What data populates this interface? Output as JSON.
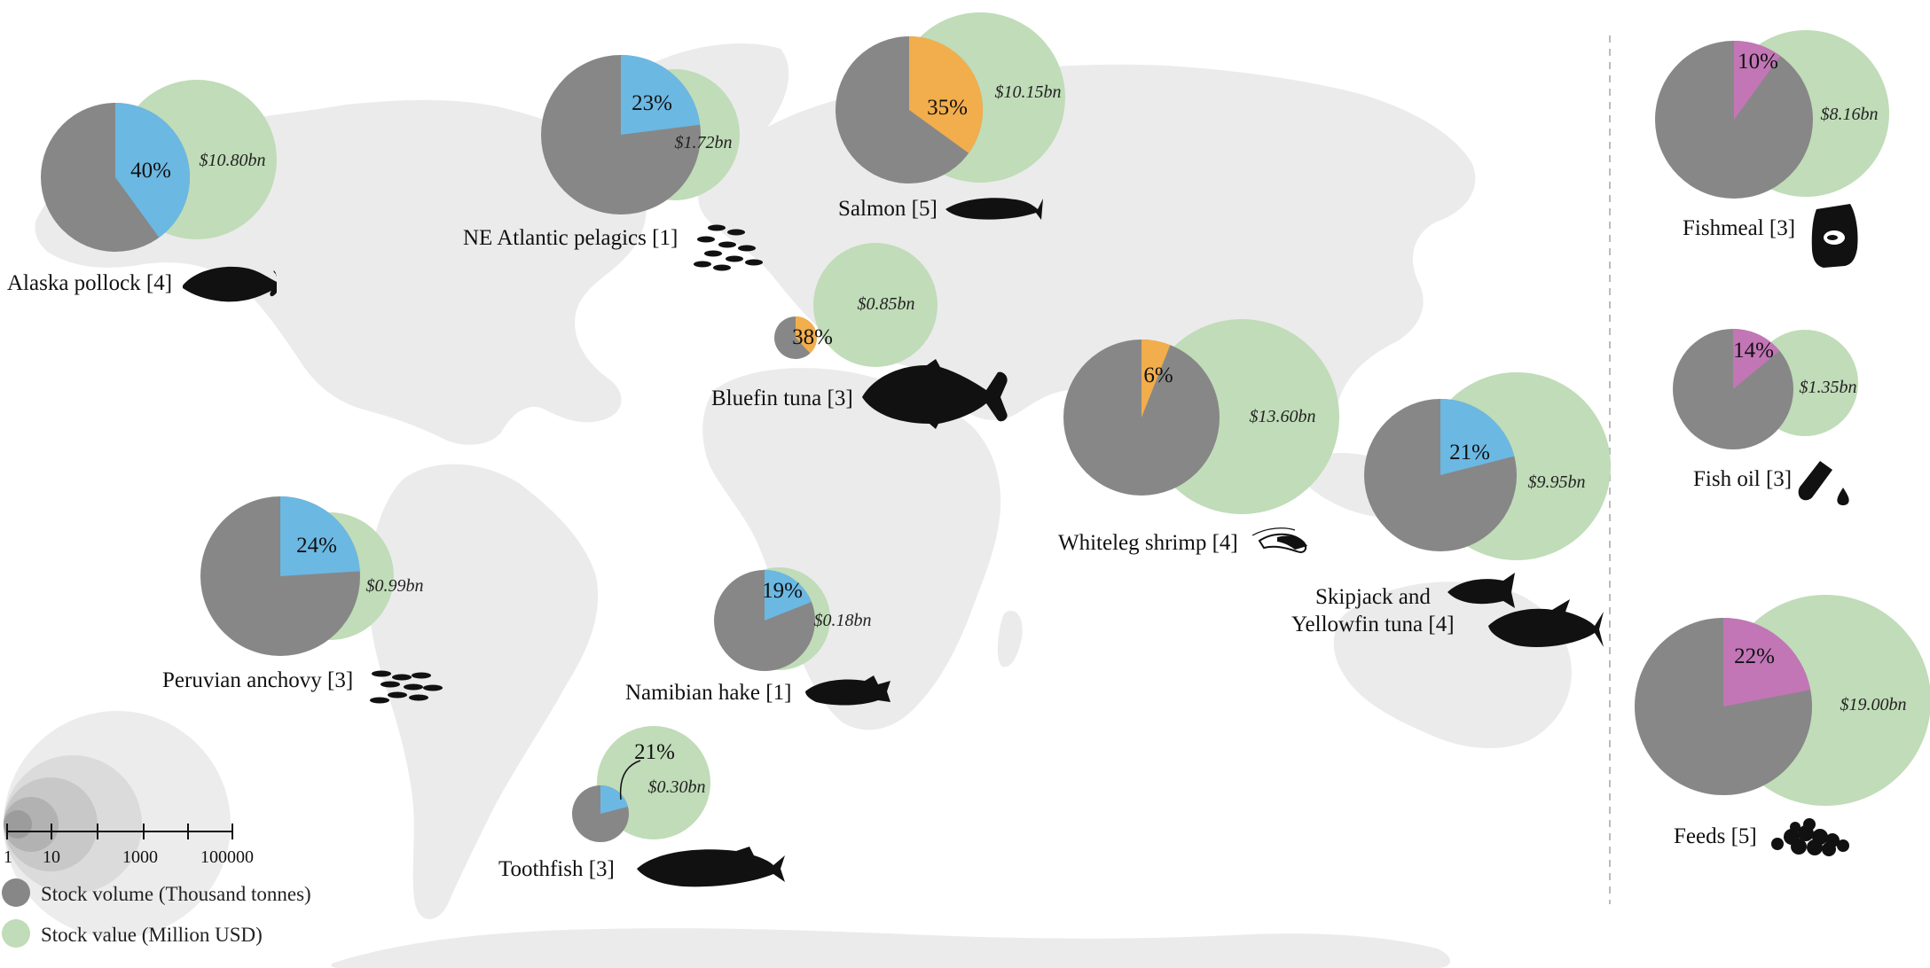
{
  "colors": {
    "volume": "#878787",
    "value": "#c0dcb8",
    "wild": "#6bb8e3",
    "farmed": "#f2ae4c",
    "feed": "#c276b6",
    "land": "#ebebeb",
    "silhouette": "#111111"
  },
  "stocks": [
    {
      "id": "alaska-pollock",
      "label": "Alaska pollock [4]",
      "pct": "40%",
      "pct_value": 40,
      "value_label": "$10.80bn",
      "category": "wild",
      "icon": "cod-silhouette-icon"
    },
    {
      "id": "ne-atlantic-pelagics",
      "label": "NE Atlantic pelagics [1]",
      "pct": "23%",
      "pct_value": 23,
      "value_label": "$1.72bn",
      "category": "wild",
      "icon": "fish-school-icon"
    },
    {
      "id": "salmon",
      "label": "Salmon [5]",
      "pct": "35%",
      "pct_value": 35,
      "value_label": "$10.15bn",
      "category": "farmed",
      "icon": "salmon-silhouette-icon"
    },
    {
      "id": "bluefin-tuna",
      "label": "Bluefin tuna [3]",
      "pct": "38%",
      "pct_value": 38,
      "value_label": "$0.85bn",
      "category": "farmed",
      "icon": "tuna-silhouette-icon"
    },
    {
      "id": "whiteleg-shrimp",
      "label": "Whiteleg shrimp [4]",
      "pct": "6%",
      "pct_value": 6,
      "value_label": "$13.60bn",
      "category": "farmed",
      "icon": "shrimp-icon"
    },
    {
      "id": "skipjack-yellowfin",
      "label": "Skipjack and",
      "label2": "Yellowfin tuna [4]",
      "pct": "21%",
      "pct_value": 21,
      "value_label": "$9.95bn",
      "category": "wild",
      "icon": "skipjack-tuna-icon"
    },
    {
      "id": "peruvian-anchovy",
      "label": "Peruvian anchovy [3]",
      "pct": "24%",
      "pct_value": 24,
      "value_label": "$0.99bn",
      "category": "wild",
      "icon": "anchovy-school-icon"
    },
    {
      "id": "namibian-hake",
      "label": "Namibian hake [1]",
      "pct": "19%",
      "pct_value": 19,
      "value_label": "$0.18bn",
      "category": "wild",
      "icon": "hake-silhouette-icon"
    },
    {
      "id": "toothfish",
      "label": "Toothfish [3]",
      "pct": "21%",
      "pct_value": 21,
      "value_label": "$0.30bn",
      "category": "wild",
      "icon": "toothfish-silhouette-icon"
    },
    {
      "id": "fishmeal",
      "label": "Fishmeal [3]",
      "pct": "10%",
      "pct_value": 10,
      "value_label": "$8.16bn",
      "category": "feed",
      "icon": "fishmeal-bag-icon"
    },
    {
      "id": "fish-oil",
      "label": "Fish oil [3]",
      "pct": "14%",
      "pct_value": 14,
      "value_label": "$1.35bn",
      "category": "feed",
      "icon": "fish-oil-tube-icon"
    },
    {
      "id": "feeds",
      "label": "Feeds [5]",
      "pct": "22%",
      "pct_value": 22,
      "value_label": "$19.00bn",
      "category": "feed",
      "icon": "feed-pellets-icon"
    }
  ],
  "legend": {
    "ticks": [
      "1",
      "10",
      "1000",
      "100000"
    ],
    "volume_label": "Stock volume (Thousand tonnes)",
    "value_label": "Stock value (Million USD)"
  }
}
